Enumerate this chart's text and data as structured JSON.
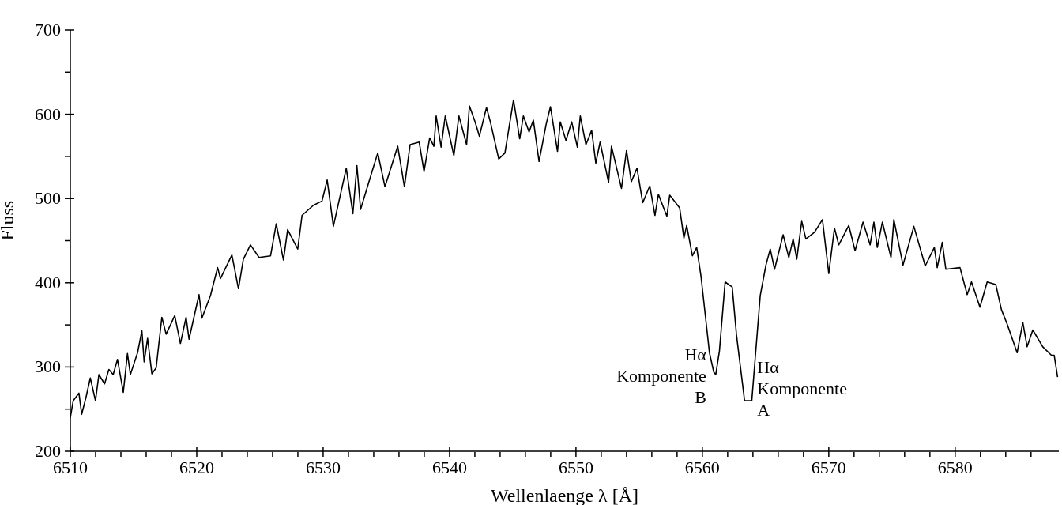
{
  "chart_data": {
    "type": "line",
    "xlabel": "Wellenlaenge λ [Å]",
    "ylabel": "Fluss",
    "xlim": [
      6510,
      6588.2
    ],
    "xticks": [
      6510,
      {
        "value": 6512,
        "label": null
      },
      {
        "value": 6514,
        "label": null
      },
      {
        "value": 6516,
        "label": null
      },
      {
        "value": 6518,
        "label": null
      },
      6520,
      {
        "value": 6522,
        "label": null
      },
      {
        "value": 6524,
        "label": null
      },
      {
        "value": 6526,
        "label": null
      },
      {
        "value": 6528,
        "label": null
      },
      6530,
      {
        "value": 6532,
        "label": null
      },
      {
        "value": 6534,
        "label": null
      },
      {
        "value": 6536,
        "label": null
      },
      {
        "value": 6538,
        "label": null
      },
      6540,
      {
        "value": 6542,
        "label": null
      },
      {
        "value": 6544,
        "label": null
      },
      {
        "value": 6546,
        "label": null
      },
      {
        "value": 6548,
        "label": null
      },
      6550,
      {
        "value": 6552,
        "label": null
      },
      {
        "value": 6554,
        "label": null
      },
      {
        "value": 6556,
        "label": null
      },
      {
        "value": 6558,
        "label": null
      },
      6560,
      {
        "value": 6562,
        "label": null
      },
      {
        "value": 6564,
        "label": null
      },
      {
        "value": 6566,
        "label": null
      },
      {
        "value": 6568,
        "label": null
      },
      6570,
      {
        "value": 6572,
        "label": null
      },
      {
        "value": 6574,
        "label": null
      },
      {
        "value": 6576,
        "label": null
      },
      {
        "value": 6578,
        "label": null
      },
      6580,
      {
        "value": 6582,
        "label": null
      },
      {
        "value": 6584,
        "label": null
      },
      {
        "value": 6586,
        "label": null
      }
    ],
    "ylim": [
      200,
      700
    ],
    "yticks": [
      200,
      {
        "value": 250,
        "label": null
      },
      300,
      {
        "value": 350,
        "label": null
      },
      400,
      {
        "value": 450,
        "label": null
      },
      500,
      {
        "value": 550,
        "label": null
      },
      600,
      {
        "value": 650,
        "label": null
      },
      700
    ],
    "series": [
      {
        "color": "#000000",
        "x": [
          6510.0,
          6510.23,
          6510.68,
          6510.9,
          6511.24,
          6511.58,
          6511.99,
          6512.26,
          6512.71,
          6513.05,
          6513.39,
          6513.73,
          6514.19,
          6514.52,
          6514.75,
          6515.32,
          6515.66,
          6515.84,
          6516.11,
          6516.45,
          6516.79,
          6517.24,
          6517.58,
          6518.26,
          6518.71,
          6519.16,
          6519.39,
          6520.18,
          6520.41,
          6521.09,
          6521.65,
          6521.88,
          6522.78,
          6523.3,
          6523.69,
          6524.25,
          6524.93,
          6525.84,
          6526.29,
          6526.86,
          6527.19,
          6527.99,
          6528.33,
          6529.23,
          6529.91,
          6530.32,
          6530.81,
          6531.83,
          6532.35,
          6532.67,
          6532.96,
          6533.87,
          6534.32,
          6534.89,
          6535.9,
          6536.43,
          6536.88,
          6537.6,
          6537.98,
          6538.43,
          6538.76,
          6538.94,
          6539.33,
          6539.66,
          6540.34,
          6540.74,
          6541.35,
          6541.57,
          6542.02,
          6542.36,
          6542.92,
          6543.26,
          6543.89,
          6544.38,
          6545.06,
          6545.55,
          6545.84,
          6546.29,
          6546.63,
          6547.08,
          6547.64,
          6547.98,
          6548.54,
          6548.76,
          6549.21,
          6549.66,
          6550.11,
          6550.34,
          6550.79,
          6551.24,
          6551.57,
          6551.91,
          6552.58,
          6552.81,
          6553.6,
          6554.0,
          6554.38,
          6554.83,
          6555.28,
          6555.84,
          6556.25,
          6556.52,
          6557.19,
          6557.42,
          6558.2,
          6558.54,
          6558.76,
          6559.21,
          6559.55,
          6559.89,
          6560.56,
          6560.9,
          6561.06,
          6561.35,
          6561.8,
          6562.36,
          6562.7,
          6563.34,
          6563.91,
          6564.58,
          6565.03,
          6565.37,
          6565.71,
          6566.39,
          6566.84,
          6567.18,
          6567.47,
          6567.86,
          6568.19,
          6568.87,
          6569.5,
          6570.0,
          6570.45,
          6570.79,
          6571.58,
          6572.08,
          6572.71,
          6573.27,
          6573.57,
          6573.84,
          6574.24,
          6574.92,
          6575.15,
          6575.87,
          6576.73,
          6577.63,
          6578.35,
          6578.58,
          6578.98,
          6579.26,
          6580.38,
          6580.95,
          6581.29,
          6581.96,
          6582.53,
          6583.21,
          6583.66,
          6584.11,
          6584.9,
          6585.35,
          6585.69,
          6586.14,
          6586.93,
          6587.61,
          6587.83,
          6588.1
        ],
        "values": [
          240,
          260,
          269,
          244,
          264,
          287,
          260,
          291,
          280,
          297,
          291,
          309,
          270,
          316,
          291,
          317,
          343,
          306,
          334,
          292,
          299,
          359,
          339,
          361,
          328,
          359,
          333,
          386,
          358,
          385,
          418,
          405,
          433,
          393,
          428,
          445,
          430,
          432,
          470,
          427,
          463,
          440,
          480,
          492,
          497,
          522,
          467,
          536,
          482,
          539,
          487,
          532,
          554,
          514,
          562,
          514,
          564,
          567,
          532,
          572,
          562,
          598,
          561,
          598,
          551,
          598,
          564,
          610,
          591,
          574,
          608,
          589,
          547,
          554,
          617,
          571,
          598,
          579,
          593,
          544,
          588,
          609,
          556,
          591,
          569,
          591,
          561,
          598,
          564,
          581,
          542,
          567,
          519,
          562,
          512,
          557,
          520,
          536,
          495,
          515,
          480,
          505,
          479,
          504,
          489,
          453,
          468,
          432,
          442,
          408,
          317,
          294,
          291,
          319,
          401,
          395,
          338,
          260,
          260,
          385,
          421,
          440,
          416,
          457,
          430,
          452,
          428,
          473,
          452,
          460,
          475,
          411,
          465,
          445,
          468,
          438,
          472,
          445,
          472,
          442,
          472,
          430,
          475,
          421,
          467,
          420,
          442,
          418,
          448,
          416,
          418,
          386,
          401,
          371,
          401,
          398,
          368,
          351,
          317,
          353,
          324,
          344,
          324,
          314,
          314,
          288
        ]
      }
    ],
    "annotations": [
      {
        "text": "Hα\nKomponente\nB",
        "x": 6561.06,
        "y": 291
      },
      {
        "text": "Hα\nKomponente\nA",
        "x": 6563.34,
        "y": 260
      }
    ]
  }
}
